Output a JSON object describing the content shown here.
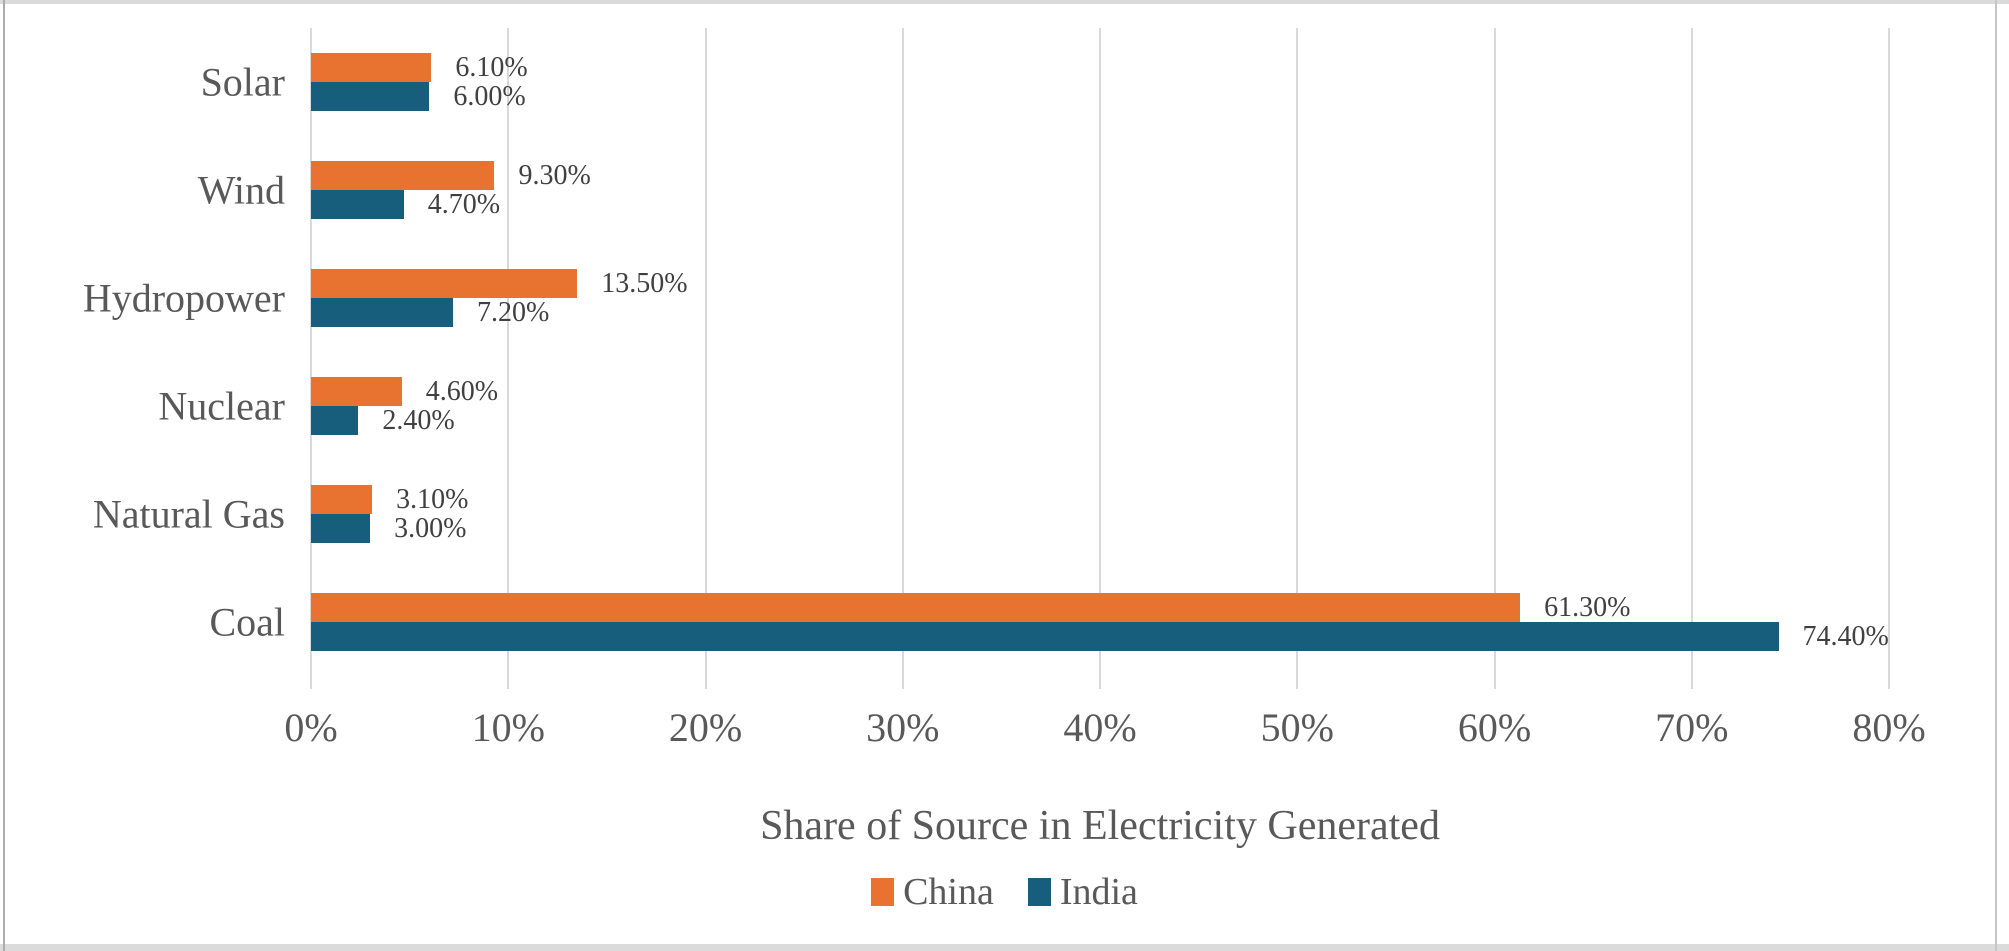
{
  "chart_data": {
    "type": "bar",
    "orientation": "horizontal",
    "title": "",
    "xlabel": "Share of Source in Electricity Generated",
    "ylabel": "",
    "categories": [
      "Solar",
      "Wind",
      "Hydropower",
      "Nuclear",
      "Natural Gas",
      "Coal"
    ],
    "series": [
      {
        "name": "China",
        "color": "#e87330",
        "values": [
          6.1,
          9.3,
          13.5,
          4.6,
          3.1,
          61.3
        ],
        "labels": [
          "6.10%",
          "9.30%",
          "13.50%",
          "4.60%",
          "3.10%",
          "61.30%"
        ]
      },
      {
        "name": "India",
        "color": "#175e7d",
        "values": [
          6.0,
          4.7,
          7.2,
          2.4,
          3.0,
          74.4
        ],
        "labels": [
          "6.00%",
          "4.70%",
          "7.20%",
          "2.40%",
          "3.00%",
          "74.40%"
        ]
      }
    ],
    "x_ticks": [
      "0%",
      "10%",
      "20%",
      "30%",
      "40%",
      "50%",
      "60%",
      "70%",
      "80%"
    ],
    "xlim": [
      0,
      80
    ],
    "grid": true,
    "legend_position": "bottom"
  },
  "style": {
    "gridline_color": "#d9d9d9",
    "axis_text_color": "#595959",
    "data_label_color": "#404040",
    "frame_color": "#dbdbdb"
  }
}
